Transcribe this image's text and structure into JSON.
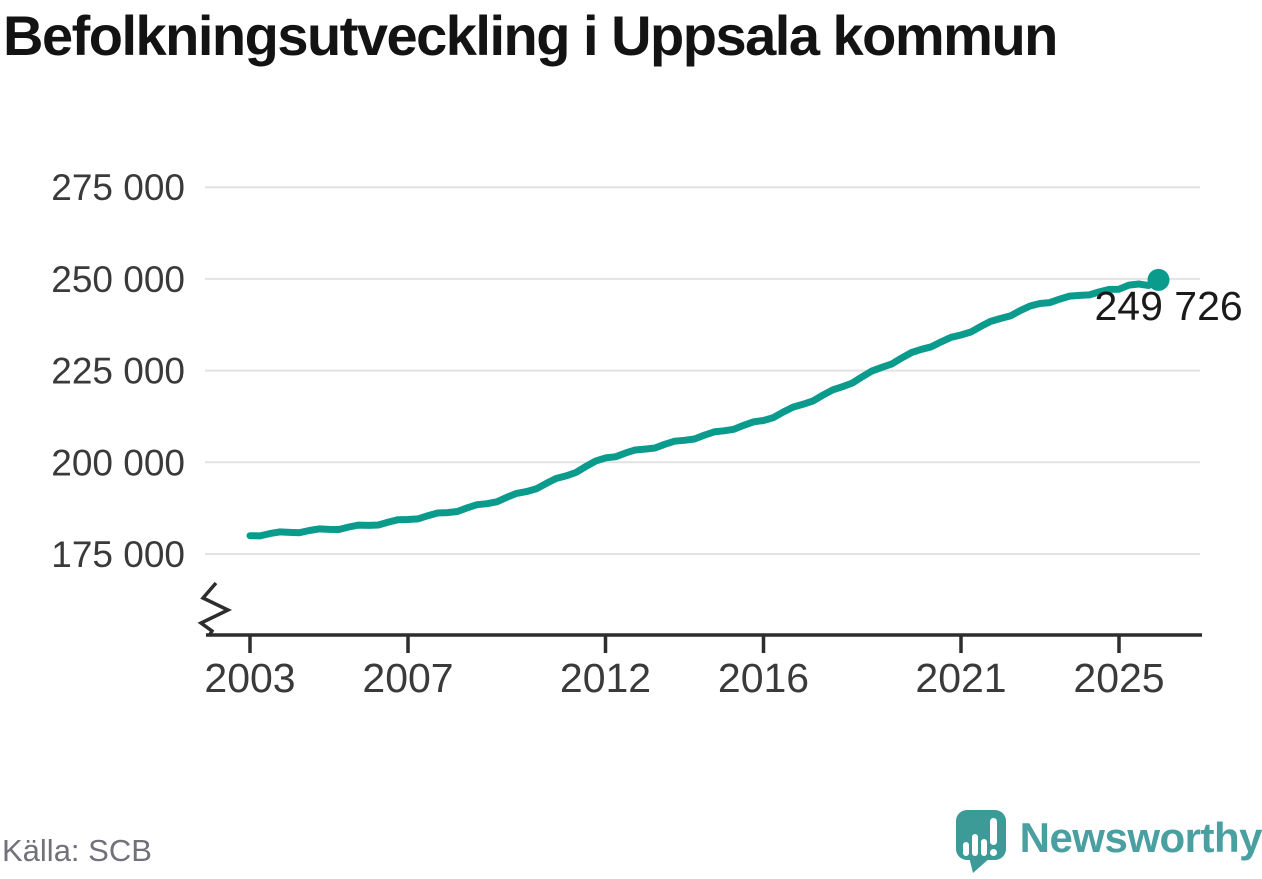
{
  "chart_data": {
    "type": "line",
    "title": "Befolkningsutveckling i Uppsala kommun",
    "grid": "horizontal",
    "legend": "none",
    "x_ticks": [
      {
        "value": 2003,
        "label": "2003"
      },
      {
        "value": 2007,
        "label": "2007"
      },
      {
        "value": 2012,
        "label": "2012"
      },
      {
        "value": 2016,
        "label": "2016"
      },
      {
        "value": 2021,
        "label": "2021"
      },
      {
        "value": 2025,
        "label": "2025"
      }
    ],
    "y_ticks": [
      {
        "value": 275000,
        "label": "275 000"
      },
      {
        "value": 250000,
        "label": "250 000"
      },
      {
        "value": 225000,
        "label": "225 000"
      },
      {
        "value": 200000,
        "label": "200 000"
      },
      {
        "value": 175000,
        "label": "175 000"
      }
    ],
    "xlim": [
      2001.9,
      2027.1
    ],
    "ylim": [
      175000,
      275000
    ],
    "y_axis_break": true,
    "end_annotation": {
      "label": "249 726",
      "value": 249726,
      "x": 2026.0
    },
    "points": [
      [
        2003.0,
        180000
      ],
      [
        2003.25,
        179925
      ],
      [
        2003.5,
        180550
      ],
      [
        2003.75,
        181025
      ],
      [
        2004.0,
        180900
      ],
      [
        2004.25,
        180800
      ],
      [
        2004.5,
        181400
      ],
      [
        2004.75,
        181850
      ],
      [
        2005.0,
        181700
      ],
      [
        2005.25,
        181675
      ],
      [
        2005.5,
        182350
      ],
      [
        2005.75,
        182875
      ],
      [
        2006.0,
        182800
      ],
      [
        2006.25,
        182900
      ],
      [
        2006.5,
        183700
      ],
      [
        2006.75,
        184350
      ],
      [
        2007.0,
        184400
      ],
      [
        2007.25,
        184575
      ],
      [
        2007.5,
        185450
      ],
      [
        2007.75,
        186175
      ],
      [
        2008.0,
        186300
      ],
      [
        2008.25,
        186600
      ],
      [
        2008.5,
        187600
      ],
      [
        2008.75,
        188450
      ],
      [
        2009.0,
        188700
      ],
      [
        2009.25,
        189225
      ],
      [
        2009.5,
        190450
      ],
      [
        2009.75,
        191525
      ],
      [
        2010.0,
        192000
      ],
      [
        2010.25,
        192775
      ],
      [
        2010.5,
        194250
      ],
      [
        2010.75,
        195575
      ],
      [
        2011.0,
        196300
      ],
      [
        2011.25,
        197225
      ],
      [
        2011.5,
        198850
      ],
      [
        2011.75,
        200325
      ],
      [
        2012.0,
        201200
      ],
      [
        2012.25,
        201500
      ],
      [
        2012.5,
        202500
      ],
      [
        2012.75,
        203350
      ],
      [
        2013.0,
        203600
      ],
      [
        2013.25,
        203900
      ],
      [
        2013.5,
        204900
      ],
      [
        2013.75,
        205750
      ],
      [
        2014.0,
        206000
      ],
      [
        2014.25,
        206350
      ],
      [
        2014.5,
        207400
      ],
      [
        2014.75,
        208300
      ],
      [
        2015.0,
        208600
      ],
      [
        2015.25,
        209000
      ],
      [
        2015.5,
        210100
      ],
      [
        2015.75,
        211050
      ],
      [
        2016.0,
        211400
      ],
      [
        2016.25,
        212200
      ],
      [
        2016.5,
        213700
      ],
      [
        2016.75,
        215050
      ],
      [
        2017.0,
        215800
      ],
      [
        2017.25,
        216700
      ],
      [
        2017.5,
        218300
      ],
      [
        2017.75,
        219750
      ],
      [
        2018.0,
        220600
      ],
      [
        2018.25,
        221625
      ],
      [
        2018.5,
        223350
      ],
      [
        2018.75,
        224925
      ],
      [
        2019.0,
        225900
      ],
      [
        2019.25,
        226825
      ],
      [
        2019.5,
        228450
      ],
      [
        2019.75,
        229925
      ],
      [
        2020.0,
        230800
      ],
      [
        2020.25,
        231475
      ],
      [
        2020.5,
        232850
      ],
      [
        2020.75,
        234075
      ],
      [
        2021.0,
        234700
      ],
      [
        2021.25,
        235525
      ],
      [
        2021.5,
        237050
      ],
      [
        2021.75,
        238425
      ],
      [
        2022.0,
        239200
      ],
      [
        2022.25,
        239925
      ],
      [
        2022.5,
        241350
      ],
      [
        2022.75,
        242625
      ],
      [
        2023.0,
        243300
      ],
      [
        2023.25,
        243550
      ],
      [
        2023.5,
        244500
      ],
      [
        2023.75,
        245300
      ],
      [
        2024.0,
        245500
      ],
      [
        2024.25,
        245625
      ],
      [
        2024.5,
        246450
      ],
      [
        2024.75,
        247125
      ],
      [
        2025.0,
        247200
      ],
      [
        2025.25,
        248300
      ],
      [
        2025.5,
        248600
      ],
      [
        2025.75,
        248200
      ],
      [
        2026.0,
        249726
      ]
    ]
  },
  "footer": {
    "source": "Källa: SCB",
    "brand": "Newsworthy"
  },
  "colors": {
    "line": "#0b9b8d",
    "grid": "#e2e2e2",
    "axis": "#2d2d2d",
    "tick_label": "#3a3a3a",
    "title": "#131313",
    "source": "#71717a",
    "brand_text": "#4aa0a0",
    "logo_bg": "#3d9b97"
  }
}
